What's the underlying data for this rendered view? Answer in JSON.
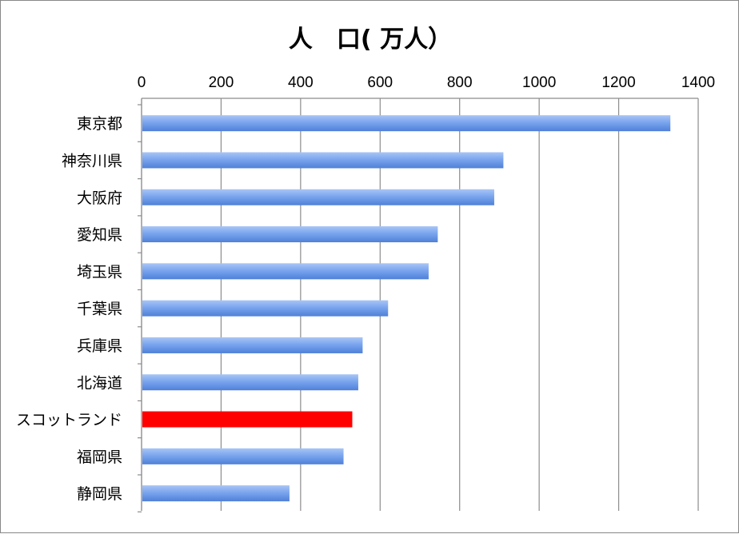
{
  "chart_data": {
    "type": "bar",
    "orientation": "horizontal",
    "title": "人　口( 万人）",
    "xlabel": "",
    "ylabel": "",
    "xlim": [
      0,
      1400
    ],
    "x_ticks": [
      0,
      200,
      400,
      600,
      800,
      1000,
      1200,
      1400
    ],
    "x_tick_labels": [
      "0",
      "200",
      "400",
      "600",
      "800",
      "1000",
      "1200",
      "1400"
    ],
    "x_axis_position": "top",
    "grid": true,
    "categories": [
      "東京都",
      "神奈川県",
      "大阪府",
      "愛知県",
      "埼玉県",
      "千葉県",
      "兵庫県",
      "北海道",
      "スコットランド",
      "福岡県",
      "静岡県"
    ],
    "values": [
      1330,
      910,
      887,
      745,
      722,
      620,
      556,
      545,
      530,
      508,
      372
    ],
    "colors": [
      "#6f9be8",
      "#6f9be8",
      "#6f9be8",
      "#6f9be8",
      "#6f9be8",
      "#6f9be8",
      "#6f9be8",
      "#6f9be8",
      "#ff0000",
      "#6f9be8",
      "#6f9be8"
    ]
  }
}
